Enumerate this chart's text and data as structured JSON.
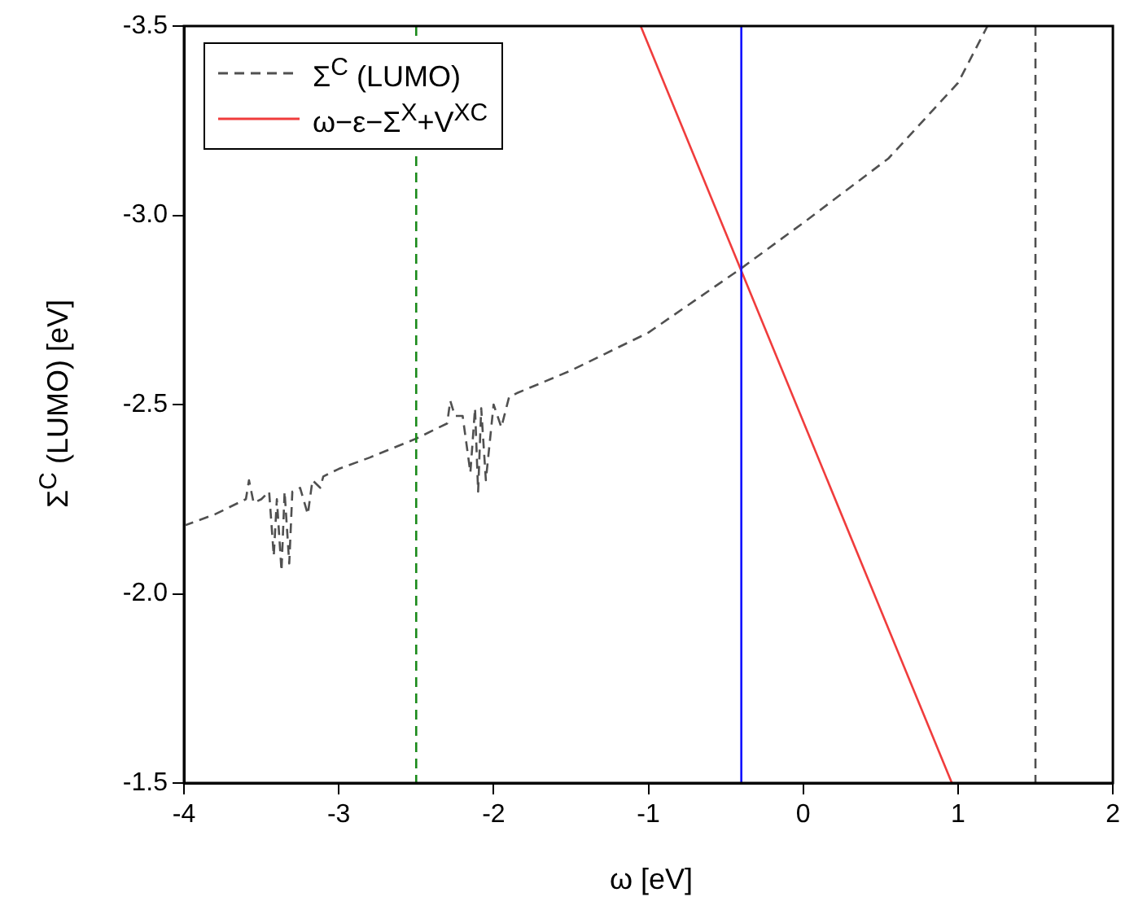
{
  "chart_data": {
    "type": "line",
    "xlabel": "ω [eV]",
    "ylabel": "Σ$^{C}$ (LUMO) [eV]",
    "xlim": [
      -4,
      2
    ],
    "xticks": [
      -4,
      -3,
      -2,
      -1,
      0,
      1,
      2
    ],
    "ylim": [
      -1.5,
      -3.5
    ],
    "yticks": [
      -1.5,
      {
        "value": -2.0,
        "label": "-2.0"
      },
      -2.5,
      {
        "value": -3.0,
        "label": "-3.0"
      },
      -3.5
    ],
    "grid": false,
    "legend": "top left",
    "marker": "none",
    "series": [
      {
        "name": "Σ$^{C}$ (LUMO)",
        "color": "#505050",
        "line_style": "dashed",
        "x": [
          -4,
          -3.8,
          -3.6,
          -3.58,
          -3.55,
          -3.5,
          -3.45,
          -3.42,
          -3.4,
          -3.37,
          -3.35,
          -3.32,
          -3.3,
          -3.25,
          -3.2,
          -3.17,
          -3.12,
          -3.1,
          -3.0,
          -2.8,
          -2.5,
          -2.3,
          -2.28,
          -2.25,
          -2.2,
          -2.15,
          -2.12,
          -2.1,
          -2.08,
          -2.05,
          -2.0,
          -1.95,
          -1.9,
          -1.85,
          -1.5,
          -1.0,
          -0.4,
          0,
          0.55,
          1.0,
          1.19,
          1.35,
          1.5,
          1.5
        ],
        "values": [
          -2.18,
          -2.21,
          -2.25,
          -2.3,
          -2.24,
          -2.25,
          -2.27,
          -2.1,
          -2.25,
          -2.06,
          -2.27,
          -2.08,
          -2.27,
          -2.28,
          -2.21,
          -2.3,
          -2.28,
          -2.31,
          -2.33,
          -2.36,
          -2.41,
          -2.45,
          -2.51,
          -2.47,
          -2.47,
          -2.32,
          -2.49,
          -2.27,
          -2.49,
          -2.3,
          -2.5,
          -2.44,
          -2.52,
          -2.53,
          -2.59,
          -2.69,
          -2.86,
          -2.98,
          -3.15,
          -3.35,
          -3.5,
          null,
          -3.5,
          -1.5
        ]
      },
      {
        "name": "ω−ε−Σ$^{X}$+V$^{XC}$",
        "color": "#f03c3c",
        "line_style": "solid",
        "x": [
          -1.05,
          0.96
        ],
        "values": [
          -3.5,
          -1.5
        ]
      }
    ],
    "ref_lines": [
      {
        "axis": "x",
        "value": -2.5,
        "color": "#1a8a1a",
        "line_style": "dashed"
      },
      {
        "axis": "x",
        "value": -0.4,
        "color": "#1010ff",
        "line_style": "solid"
      }
    ]
  }
}
